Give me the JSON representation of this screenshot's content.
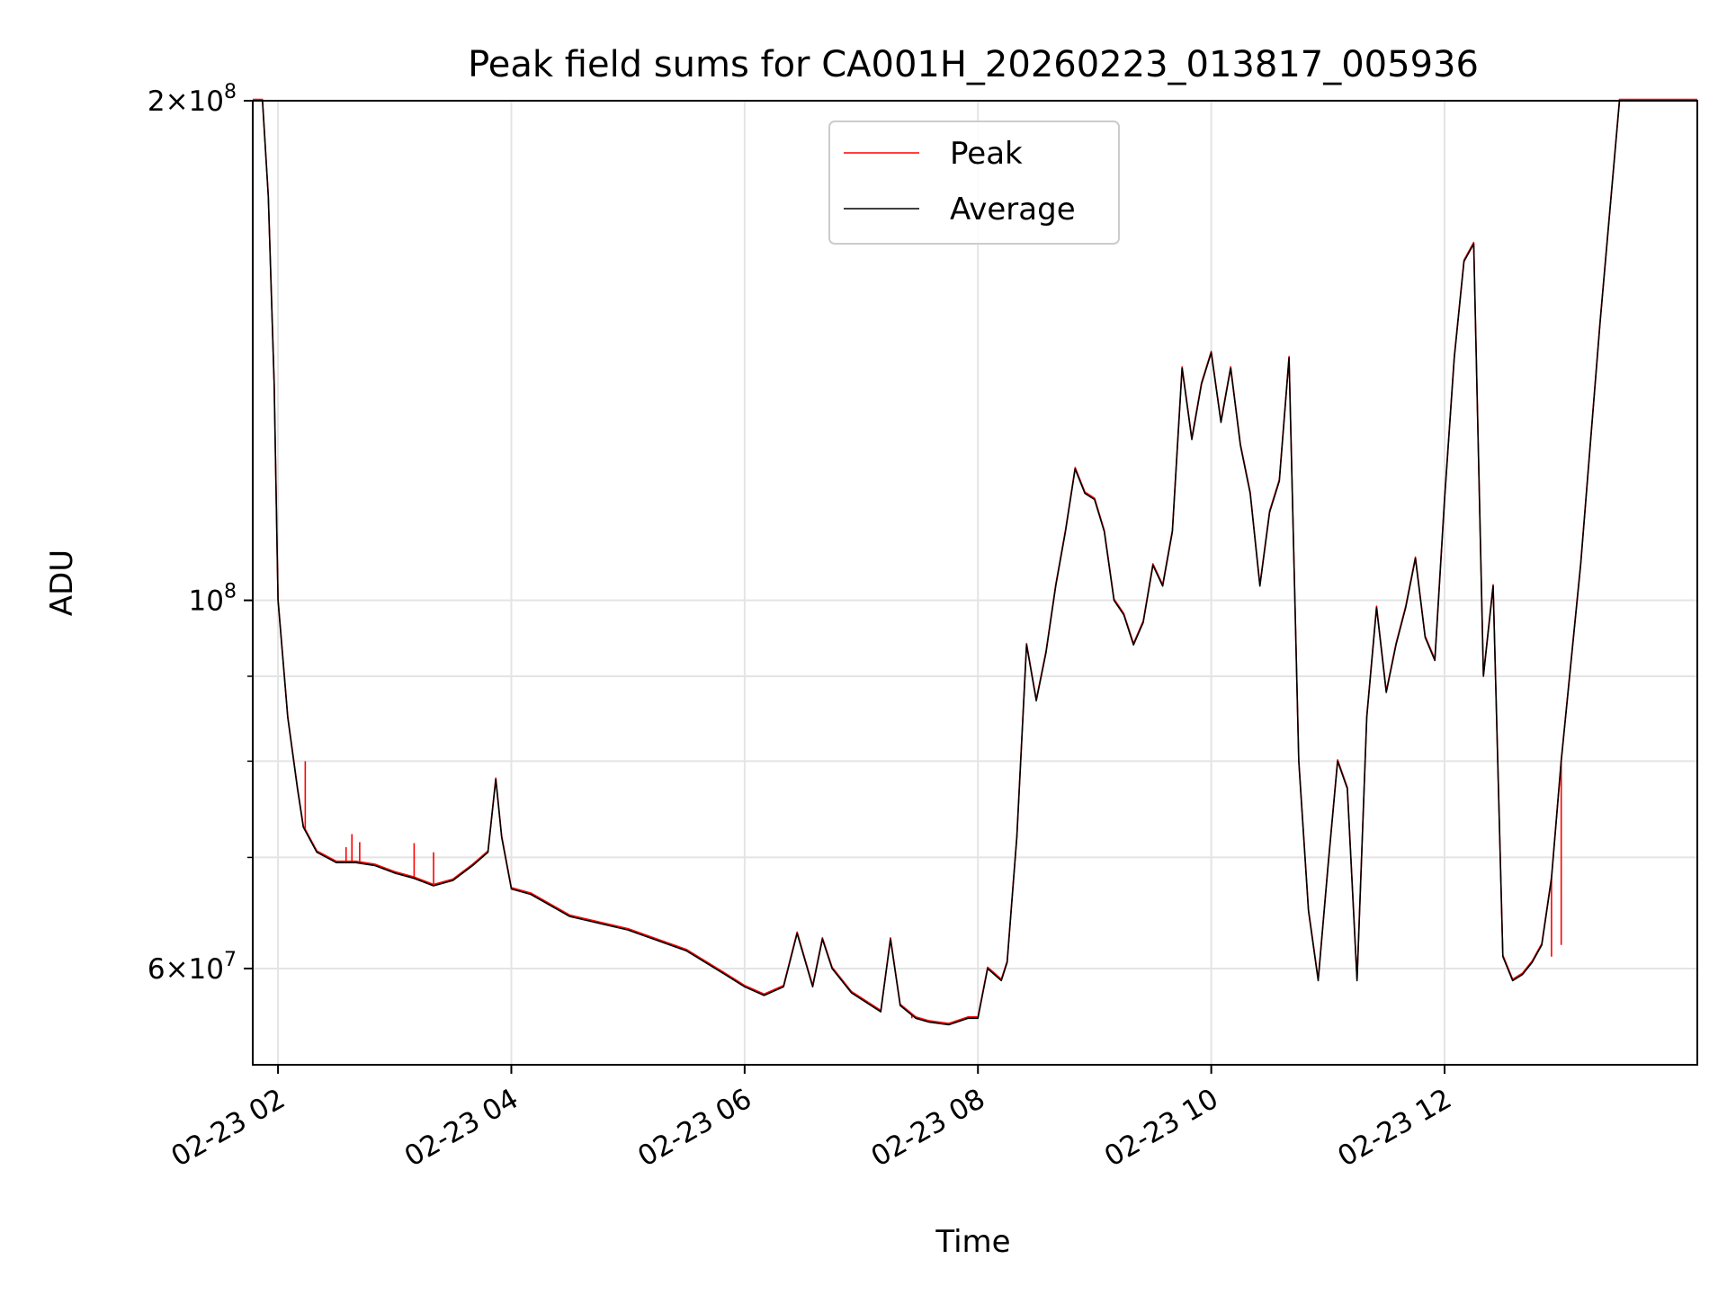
{
  "chart_data": {
    "type": "line",
    "title": "Peak field sums for CA001H_20260223_013817_005936",
    "xlabel": "Time",
    "ylabel": "ADU",
    "xlim": [
      "02-23 01:47",
      "02-23 14:10"
    ],
    "ylim": [
      52500000,
      200000000
    ],
    "y_scale": "log",
    "grid": true,
    "legend_position": "top-center",
    "x_ticks": [
      {
        "value": "02-23 02:00",
        "label": "02-23 02"
      },
      {
        "value": "02-23 04:00",
        "label": "02-23 04"
      },
      {
        "value": "02-23 06:00",
        "label": "02-23 06"
      },
      {
        "value": "02-23 08:00",
        "label": "02-23 08"
      },
      {
        "value": "02-23 10:00",
        "label": "02-23 10"
      },
      {
        "value": "02-23 12:00",
        "label": "02-23 12"
      }
    ],
    "y_major_ticks": [
      {
        "value": 60000000,
        "mantissa": "6",
        "exp": "7"
      },
      {
        "value": 100000000,
        "mantissa": "",
        "exp": "8"
      },
      {
        "value": 200000000,
        "mantissa": "2",
        "exp": "8"
      }
    ],
    "y_minor_ticks": [
      70000000,
      80000000,
      90000000
    ],
    "series": [
      {
        "name": "Peak",
        "color": "#ff0000",
        "spikes": [
          {
            "x": "02-23 02:14",
            "y": 80000000
          },
          {
            "x": "02-23 02:35",
            "y": 71000000
          },
          {
            "x": "02-23 02:42",
            "y": 71500000
          },
          {
            "x": "02-23 02:38",
            "y": 72300000
          },
          {
            "x": "02-23 03:10",
            "y": 71400000
          },
          {
            "x": "02-23 03:20",
            "y": 70500000
          },
          {
            "x": "02-23 07:26",
            "y": 56000000
          },
          {
            "x": "02-23 12:55",
            "y": 61000000
          },
          {
            "x": "02-23 13:00",
            "y": 62000000
          }
        ]
      },
      {
        "name": "Average",
        "color": "#000000",
        "x": [
          "02-23 01:47",
          "02-23 01:52",
          "02-23 01:55",
          "02-23 01:58",
          "02-23 02:00",
          "02-23 02:05",
          "02-23 02:10",
          "02-23 02:13",
          "02-23 02:20",
          "02-23 02:30",
          "02-23 02:40",
          "02-23 02:50",
          "02-23 03:00",
          "02-23 03:10",
          "02-23 03:20",
          "02-23 03:30",
          "02-23 03:40",
          "02-23 03:48",
          "02-23 03:52",
          "02-23 03:55",
          "02-23 04:00",
          "02-23 04:10",
          "02-23 04:30",
          "02-23 05:00",
          "02-23 05:30",
          "02-23 05:50",
          "02-23 06:00",
          "02-23 06:10",
          "02-23 06:20",
          "02-23 06:27",
          "02-23 06:35",
          "02-23 06:40",
          "02-23 06:45",
          "02-23 06:55",
          "02-23 07:10",
          "02-23 07:15",
          "02-23 07:20",
          "02-23 07:28",
          "02-23 07:35",
          "02-23 07:45",
          "02-23 07:55",
          "02-23 08:00",
          "02-23 08:05",
          "02-23 08:12",
          "02-23 08:15",
          "02-23 08:20",
          "02-23 08:25",
          "02-23 08:30",
          "02-23 08:35",
          "02-23 08:40",
          "02-23 08:45",
          "02-23 08:50",
          "02-23 08:55",
          "02-23 09:00",
          "02-23 09:05",
          "02-23 09:10",
          "02-23 09:15",
          "02-23 09:20",
          "02-23 09:25",
          "02-23 09:30",
          "02-23 09:35",
          "02-23 09:40",
          "02-23 09:45",
          "02-23 09:50",
          "02-23 09:55",
          "02-23 10:00",
          "02-23 10:05",
          "02-23 10:10",
          "02-23 10:15",
          "02-23 10:20",
          "02-23 10:25",
          "02-23 10:30",
          "02-23 10:35",
          "02-23 10:40",
          "02-23 10:45",
          "02-23 10:50",
          "02-23 10:55",
          "02-23 11:00",
          "02-23 11:05",
          "02-23 11:10",
          "02-23 11:15",
          "02-23 11:20",
          "02-23 11:25",
          "02-23 11:30",
          "02-23 11:35",
          "02-23 11:40",
          "02-23 11:45",
          "02-23 11:50",
          "02-23 11:55",
          "02-23 12:00",
          "02-23 12:05",
          "02-23 12:10",
          "02-23 12:15",
          "02-23 12:20",
          "02-23 12:25",
          "02-23 12:30",
          "02-23 12:35",
          "02-23 12:40",
          "02-23 12:45",
          "02-23 12:50",
          "02-23 12:55",
          "02-23 13:00",
          "02-23 13:10",
          "02-23 13:20",
          "02-23 13:30",
          "02-23 13:40",
          "02-23 13:50",
          "02-23 13:55",
          "02-23 14:00",
          "02-23 14:05",
          "02-23 14:10"
        ],
        "y": [
          200000000,
          200000000,
          175000000,
          135000000,
          100000000,
          85000000,
          77000000,
          73000000,
          70500000,
          69500000,
          69500000,
          69200000,
          68500000,
          68000000,
          67300000,
          67800000,
          69200000,
          70500000,
          78000000,
          72000000,
          67000000,
          66500000,
          64500000,
          63300000,
          61500000,
          59500000,
          58500000,
          57800000,
          58500000,
          63000000,
          58500000,
          62500000,
          60000000,
          58000000,
          56500000,
          62500000,
          57000000,
          56000000,
          55700000,
          55500000,
          56000000,
          56000000,
          60000000,
          59000000,
          60500000,
          72000000,
          94000000,
          87000000,
          93000000,
          102000000,
          110000000,
          120000000,
          116000000,
          115000000,
          110000000,
          100000000,
          98000000,
          94000000,
          97000000,
          105000000,
          102000000,
          110000000,
          138000000,
          125000000,
          135000000,
          141000000,
          128000000,
          138000000,
          124000000,
          116000000,
          102000000,
          113000000,
          118000000,
          140000000,
          80000000,
          65000000,
          59000000,
          69000000,
          80000000,
          77000000,
          59000000,
          85000000,
          99000000,
          88000000,
          94000000,
          99000000,
          106000000,
          95000000,
          92000000,
          115000000,
          140000000,
          160000000,
          164000000,
          90000000,
          102000000,
          61000000,
          59000000,
          59500000,
          60500000,
          62000000,
          68000000,
          80000000,
          105000000,
          147000000,
          200000000,
          200000000,
          200000000,
          200000000,
          200000000,
          200000000,
          200000000
        ]
      }
    ]
  }
}
